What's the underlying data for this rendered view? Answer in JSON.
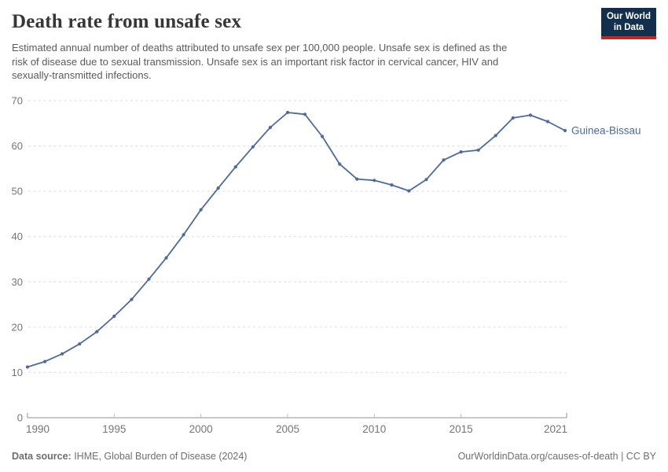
{
  "header": {
    "title": "Death rate from unsafe sex",
    "subtitle_lines": [
      "Estimated annual number of deaths attributed to unsafe sex per 100,000 people. Unsafe sex is defined as the",
      "risk of disease due to sexual transmission. Unsafe sex is an important risk factor in cervical cancer, HIV and",
      "sexually-transmitted infections."
    ]
  },
  "logo": {
    "line1": "Our World",
    "line2": "in Data",
    "bg_color": "#12304e",
    "accent_color": "#c0272d"
  },
  "chart_data": {
    "type": "line",
    "title": "Death rate from unsafe sex",
    "unit": "deaths per 100,000 people",
    "x": [
      1990,
      1991,
      1992,
      1993,
      1994,
      1995,
      1996,
      1997,
      1998,
      1999,
      2000,
      2001,
      2002,
      2003,
      2004,
      2005,
      2006,
      2007,
      2008,
      2009,
      2010,
      2011,
      2012,
      2013,
      2014,
      2015,
      2016,
      2017,
      2018,
      2019,
      2020,
      2021
    ],
    "series": [
      {
        "name": "Guinea-Bissau",
        "values": [
          11.2,
          12.4,
          14.1,
          16.3,
          19.0,
          22.4,
          26.1,
          30.6,
          35.3,
          40.4,
          45.9,
          50.7,
          55.4,
          59.8,
          64.1,
          67.4,
          67.0,
          62.1,
          56.0,
          52.7,
          52.4,
          51.4,
          50.1,
          52.6,
          56.9,
          58.7,
          59.1,
          62.3,
          66.2,
          66.8,
          65.4,
          63.4
        ]
      }
    ],
    "ylim": [
      0,
      70
    ],
    "yticks": [
      0,
      10,
      20,
      30,
      40,
      50,
      60,
      70
    ],
    "xticks": [
      1990,
      1995,
      2000,
      2005,
      2010,
      2015,
      2021
    ],
    "grid": "horizontal-dashed",
    "legend_position": "end-of-line-label"
  },
  "footer": {
    "source_label": "Data source:",
    "source_value": " IHME, Global Burden of Disease (2024)",
    "credit": "OurWorldinData.org/causes-of-death | CC BY"
  },
  "colors": {
    "line": "#4c6a9c",
    "entity_label": "#4c6a9c",
    "grid": "#dcdcdc",
    "axis": "#8f8f8f",
    "tick_text": "#757575"
  }
}
